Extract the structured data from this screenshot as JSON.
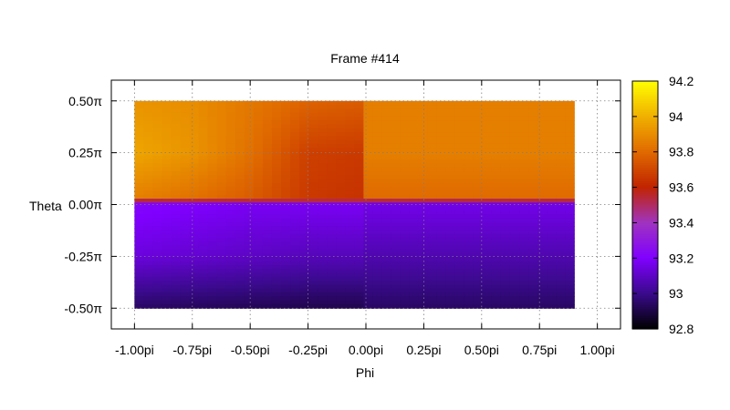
{
  "chart_data": {
    "type": "heatmap",
    "title": "Frame #414",
    "xlabel": "Phi",
    "ylabel": "Theta",
    "xlim": [
      -1.1,
      1.1
    ],
    "ylim": [
      -0.6,
      0.6
    ],
    "x_ticks": [
      {
        "value": -1.0,
        "label": "-1.00pi"
      },
      {
        "value": -0.75,
        "label": "-0.75pi"
      },
      {
        "value": -0.5,
        "label": "-0.50pi"
      },
      {
        "value": -0.25,
        "label": "-0.25pi"
      },
      {
        "value": 0.0,
        "label": "0.00pi"
      },
      {
        "value": 0.25,
        "label": "0.25pi"
      },
      {
        "value": 0.5,
        "label": "0.50pi"
      },
      {
        "value": 0.75,
        "label": "0.75pi"
      },
      {
        "value": 1.0,
        "label": "1.00pi"
      }
    ],
    "y_ticks": [
      {
        "value": 0.5,
        "label": "0.50π"
      },
      {
        "value": 0.25,
        "label": "0.25π"
      },
      {
        "value": 0.0,
        "label": "0.00π"
      },
      {
        "value": -0.25,
        "label": "-0.25π"
      },
      {
        "value": -0.5,
        "label": "-0.50π"
      }
    ],
    "grid": true,
    "colorbar": {
      "range": [
        92.8,
        94.2
      ],
      "ticks": [
        {
          "value": 94.2,
          "label": "94.2"
        },
        {
          "value": 94.0,
          "label": "94"
        },
        {
          "value": 93.8,
          "label": "93.8"
        },
        {
          "value": 93.6,
          "label": "93.6"
        },
        {
          "value": 93.4,
          "label": "93.4"
        },
        {
          "value": 93.2,
          "label": "93.2"
        },
        {
          "value": 93.0,
          "label": "93"
        },
        {
          "value": 92.8,
          "label": "92.8"
        }
      ],
      "stops": [
        {
          "value": 92.8,
          "color": "#000000"
        },
        {
          "value": 93.0,
          "color": "#3a0a8c"
        },
        {
          "value": 93.2,
          "color": "#8000ff"
        },
        {
          "value": 93.4,
          "color": "#a033c0"
        },
        {
          "value": 93.6,
          "color": "#c02400"
        },
        {
          "value": 93.8,
          "color": "#e06a00"
        },
        {
          "value": 94.0,
          "color": "#f0b000"
        },
        {
          "value": 94.2,
          "color": "#ffff00"
        }
      ]
    },
    "data_extent": {
      "phi": [
        -1.0,
        0.9
      ],
      "theta": [
        -0.5,
        0.5
      ]
    },
    "phi_samples": [
      -1.0,
      -0.75,
      -0.5,
      -0.25,
      -0.001,
      0.0,
      0.25,
      0.5,
      0.75,
      0.9
    ],
    "theta_samples": [
      0.5,
      0.25,
      0.03,
      0.02,
      0.0,
      -0.25,
      -0.5
    ],
    "values": [
      [
        93.92,
        93.9,
        93.84,
        93.78,
        93.76,
        93.86,
        93.86,
        93.86,
        93.86,
        93.86
      ],
      [
        93.97,
        93.92,
        93.82,
        93.68,
        93.66,
        93.86,
        93.86,
        93.86,
        93.86,
        93.86
      ],
      [
        93.86,
        93.82,
        93.76,
        93.66,
        93.64,
        93.8,
        93.8,
        93.8,
        93.8,
        93.8
      ],
      [
        93.55,
        93.55,
        93.55,
        93.55,
        93.55,
        93.55,
        93.55,
        93.55,
        93.55,
        93.55
      ],
      [
        93.22,
        93.2,
        93.18,
        93.18,
        93.18,
        93.16,
        93.16,
        93.16,
        93.16,
        93.16
      ],
      [
        93.14,
        93.12,
        93.1,
        93.08,
        93.08,
        93.06,
        93.06,
        93.06,
        93.06,
        93.06
      ],
      [
        92.94,
        92.93,
        92.92,
        92.91,
        92.91,
        92.94,
        92.94,
        92.94,
        92.94,
        92.94
      ]
    ]
  }
}
